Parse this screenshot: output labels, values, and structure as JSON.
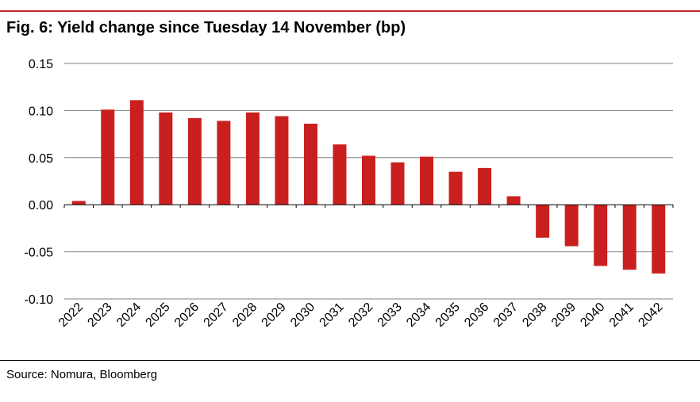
{
  "figure": {
    "title": "Fig. 6: Yield change since Tuesday 14 November (bp)",
    "source": "Source: Nomura, Bloomberg"
  },
  "chart_data": {
    "type": "bar",
    "categories": [
      "2022",
      "2023",
      "2024",
      "2025",
      "2026",
      "2027",
      "2028",
      "2029",
      "2030",
      "2031",
      "2032",
      "2033",
      "2034",
      "2035",
      "2036",
      "2037",
      "2038",
      "2039",
      "2040",
      "2041",
      "2042"
    ],
    "values": [
      0.004,
      0.101,
      0.111,
      0.098,
      0.092,
      0.089,
      0.098,
      0.094,
      0.086,
      0.064,
      0.052,
      0.045,
      0.051,
      0.035,
      0.039,
      0.009,
      -0.035,
      -0.044,
      -0.065,
      -0.069,
      -0.073
    ],
    "ylim": [
      -0.1,
      0.15
    ],
    "yticks": [
      "-0.10",
      "-0.05",
      "0.00",
      "0.05",
      "0.10",
      "0.15"
    ],
    "grid": true,
    "bar_color": "#c9201f",
    "grid_color": "#808080"
  }
}
